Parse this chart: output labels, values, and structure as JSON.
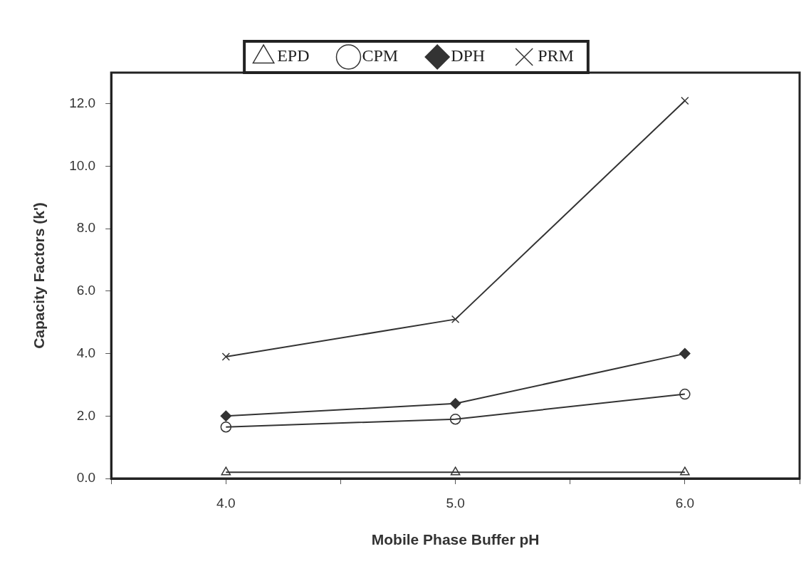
{
  "chart_data": {
    "type": "line",
    "xlabel": "Mobile Phase Buffer pH",
    "ylabel": "Capacity Factors (k')",
    "x": [
      4,
      5,
      6
    ],
    "series": [
      {
        "name": "EPD",
        "color": "#333333",
        "marker": "triangle",
        "values": [
          0.2,
          0.2,
          0.2
        ]
      },
      {
        "name": "CPM",
        "color": "#333333",
        "marker": "circle",
        "values": [
          1.65,
          1.9,
          2.7
        ]
      },
      {
        "name": "DPH",
        "color": "#333333",
        "marker": "diamond",
        "values": [
          2.0,
          2.4,
          4.0
        ]
      },
      {
        "name": "PRM",
        "color": "#333333",
        "marker": "cross",
        "values": [
          3.9,
          5.1,
          12.1
        ]
      }
    ],
    "xlim": [
      3.5,
      6.5
    ],
    "xticks": [
      {
        "value": 3.5,
        "label": null
      },
      {
        "value": 4,
        "label": "4.0"
      },
      {
        "value": 4.5,
        "label": null
      },
      {
        "value": 5,
        "label": "5.0"
      },
      {
        "value": 5.5,
        "label": null
      },
      {
        "value": 6,
        "label": "6.0"
      },
      {
        "value": 6.5,
        "label": null
      }
    ],
    "ylim": [
      0,
      13
    ],
    "yticks": [
      {
        "value": 0,
        "label": "0.0"
      },
      {
        "value": 2,
        "label": "2.0"
      },
      {
        "value": 4,
        "label": "4.0"
      },
      {
        "value": 6,
        "label": "6.0"
      },
      {
        "value": 8,
        "label": "8.0"
      },
      {
        "value": 10,
        "label": "10.0"
      },
      {
        "value": 12,
        "label": "12.0"
      }
    ],
    "grid": false,
    "legend": "top",
    "line_style": "solid"
  }
}
